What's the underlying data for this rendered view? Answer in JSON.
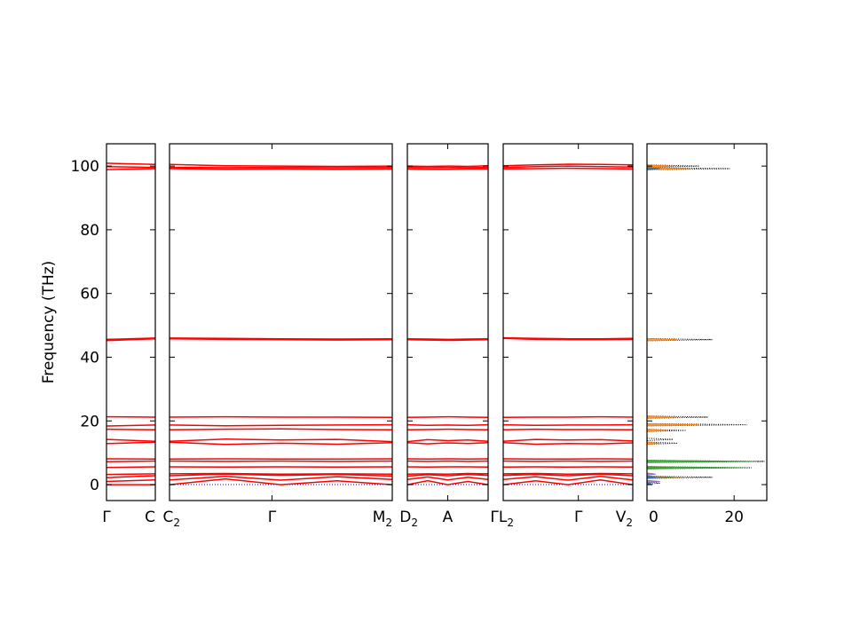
{
  "chart_data": {
    "type": "line",
    "ylabel": "Frequency (THz)",
    "ylim": [
      -5,
      107
    ],
    "yticks": [
      0,
      20,
      40,
      60,
      80,
      100
    ],
    "line_color": "#ff0000",
    "zero_line_color": "#0000ff",
    "panels": [
      {
        "id": "p1",
        "xticks": [
          {
            "label": "Γ",
            "sub": "",
            "pos": 0
          },
          {
            "label": "C",
            "sub": "",
            "pos": 1
          }
        ],
        "band_profiles": [
          {
            "name": "b0",
            "values": [
              0.0,
              0.0
            ]
          },
          {
            "name": "b1",
            "values": [
              1.0,
              1.5
            ]
          },
          {
            "name": "b2",
            "values": [
              2.2,
              2.8
            ]
          },
          {
            "name": "b3",
            "values": [
              3.2,
              3.4
            ]
          },
          {
            "name": "b4",
            "values": [
              5.4,
              5.6
            ]
          },
          {
            "name": "b5",
            "values": [
              7.2,
              7.4
            ]
          },
          {
            "name": "b6",
            "values": [
              8.1,
              8.0
            ]
          },
          {
            "name": "b7",
            "values": [
              12.9,
              13.3
            ]
          },
          {
            "name": "b8",
            "values": [
              14.2,
              13.6
            ]
          },
          {
            "name": "b9",
            "values": [
              17.4,
              17.2
            ]
          },
          {
            "name": "b10",
            "values": [
              18.4,
              18.7
            ]
          },
          {
            "name": "b11",
            "values": [
              21.3,
              21.2
            ]
          },
          {
            "name": "b12",
            "values": [
              45.2,
              45.8
            ]
          },
          {
            "name": "b13",
            "values": [
              45.6,
              46.0
            ]
          },
          {
            "name": "b14",
            "values": [
              98.9,
              99.2
            ]
          },
          {
            "name": "b15",
            "values": [
              99.8,
              99.6
            ]
          },
          {
            "name": "b16",
            "values": [
              100.9,
              100.5
            ]
          }
        ]
      },
      {
        "id": "p2",
        "xticks": [
          {
            "label": "C",
            "sub": "2",
            "pos": 0
          },
          {
            "label": "Γ",
            "sub": "",
            "pos": 0.46
          },
          {
            "label": "M",
            "sub": "2",
            "pos": 1
          }
        ],
        "band_profiles": [
          {
            "name": "b0",
            "values": [
              0.0,
              1.8,
              0.0,
              1.2,
              0.0
            ]
          },
          {
            "name": "b1",
            "values": [
              1.5,
              2.6,
              1.4,
              2.5,
              1.6
            ]
          },
          {
            "name": "b2",
            "values": [
              2.8,
              3.3,
              2.9,
              3.2,
              2.7
            ]
          },
          {
            "name": "b3",
            "values": [
              3.4,
              3.5,
              3.3,
              3.4,
              3.3
            ]
          },
          {
            "name": "b4",
            "values": [
              5.6,
              5.5,
              5.6,
              5.5,
              5.6
            ]
          },
          {
            "name": "b5",
            "values": [
              7.4,
              7.3,
              7.4,
              7.3,
              7.4
            ]
          },
          {
            "name": "b6",
            "values": [
              8.0,
              8.1,
              8.0,
              8.0,
              8.1
            ]
          },
          {
            "name": "b7",
            "values": [
              13.3,
              12.6,
              13.0,
              12.7,
              13.2
            ]
          },
          {
            "name": "b8",
            "values": [
              13.6,
              14.3,
              14.0,
              14.2,
              13.5
            ]
          },
          {
            "name": "b9",
            "values": [
              17.2,
              17.4,
              17.5,
              17.3,
              17.2
            ]
          },
          {
            "name": "b10",
            "values": [
              18.7,
              18.5,
              18.6,
              18.7,
              18.8
            ]
          },
          {
            "name": "b11",
            "values": [
              21.2,
              21.3,
              21.2,
              21.2,
              21.1
            ]
          },
          {
            "name": "b12",
            "values": [
              45.8,
              45.6,
              45.5,
              45.4,
              45.5
            ]
          },
          {
            "name": "b13",
            "values": [
              46.0,
              45.9,
              45.8,
              45.7,
              45.8
            ]
          },
          {
            "name": "b14",
            "values": [
              99.2,
              99.0,
              99.1,
              99.0,
              99.1
            ]
          },
          {
            "name": "b15",
            "values": [
              99.6,
              99.5,
              99.6,
              99.5,
              99.6
            ]
          },
          {
            "name": "b16",
            "values": [
              100.5,
              100.1,
              100.0,
              99.9,
              100.0
            ]
          }
        ]
      },
      {
        "id": "p3",
        "xticks": [
          {
            "label": "D",
            "sub": "2",
            "pos": 0
          },
          {
            "label": "A",
            "sub": "",
            "pos": 0.5
          }
        ],
        "band_profiles": [
          {
            "name": "b0",
            "values": [
              0.0,
              1.2,
              0.0,
              1.0,
              0.0
            ]
          },
          {
            "name": "b1",
            "values": [
              1.6,
              2.4,
              1.5,
              2.3,
              1.6
            ]
          },
          {
            "name": "b2",
            "values": [
              2.7,
              3.1,
              2.8,
              3.2,
              2.9
            ]
          },
          {
            "name": "b3",
            "values": [
              3.3,
              3.4,
              3.3,
              3.5,
              3.4
            ]
          },
          {
            "name": "b4",
            "values": [
              5.6,
              5.5,
              5.6,
              5.6,
              5.5
            ]
          },
          {
            "name": "b5",
            "values": [
              7.4,
              7.3,
              7.4,
              7.3,
              7.4
            ]
          },
          {
            "name": "b6",
            "values": [
              8.1,
              8.0,
              8.1,
              8.0,
              8.1
            ]
          },
          {
            "name": "b7",
            "values": [
              13.2,
              12.8,
              13.1,
              12.9,
              13.2
            ]
          },
          {
            "name": "b8",
            "values": [
              13.5,
              14.1,
              13.8,
              14.0,
              13.6
            ]
          },
          {
            "name": "b9",
            "values": [
              17.2,
              17.3,
              17.4,
              17.3,
              17.2
            ]
          },
          {
            "name": "b10",
            "values": [
              18.8,
              18.6,
              18.7,
              18.6,
              18.8
            ]
          },
          {
            "name": "b11",
            "values": [
              21.1,
              21.2,
              21.3,
              21.2,
              21.1
            ]
          },
          {
            "name": "b12",
            "values": [
              45.5,
              45.4,
              45.3,
              45.4,
              45.5
            ]
          },
          {
            "name": "b13",
            "values": [
              45.8,
              45.7,
              45.6,
              45.7,
              45.8
            ]
          },
          {
            "name": "b14",
            "values": [
              99.1,
              99.0,
              99.0,
              99.1,
              99.1
            ]
          },
          {
            "name": "b15",
            "values": [
              99.6,
              99.5,
              99.6,
              99.5,
              99.6
            ]
          },
          {
            "name": "b16",
            "values": [
              100.0,
              99.9,
              100.0,
              99.9,
              100.1
            ]
          }
        ]
      },
      {
        "id": "p4",
        "xticks": [
          {
            "label": "ΓL",
            "sub": "2",
            "pos": 0
          },
          {
            "label": "Γ",
            "sub": "",
            "pos": 0.58
          },
          {
            "label": "V",
            "sub": "2",
            "pos": 1
          }
        ],
        "band_profiles": [
          {
            "name": "b0",
            "values": [
              0.0,
              1.2,
              0.0,
              1.5,
              0.0
            ]
          },
          {
            "name": "b1",
            "values": [
              1.6,
              2.5,
              1.4,
              2.6,
              1.5
            ]
          },
          {
            "name": "b2",
            "values": [
              2.9,
              3.2,
              2.8,
              3.3,
              2.8
            ]
          },
          {
            "name": "b3",
            "values": [
              3.4,
              3.5,
              3.3,
              3.5,
              3.4
            ]
          },
          {
            "name": "b4",
            "values": [
              5.5,
              5.6,
              5.5,
              5.6,
              5.5
            ]
          },
          {
            "name": "b5",
            "values": [
              7.4,
              7.3,
              7.4,
              7.3,
              7.4
            ]
          },
          {
            "name": "b6",
            "values": [
              8.1,
              8.0,
              8.0,
              8.1,
              8.0
            ]
          },
          {
            "name": "b7",
            "values": [
              13.2,
              12.7,
              12.9,
              12.8,
              13.1
            ]
          },
          {
            "name": "b8",
            "values": [
              13.6,
              14.2,
              14.0,
              14.1,
              13.7
            ]
          },
          {
            "name": "b9",
            "values": [
              17.2,
              17.4,
              17.3,
              17.3,
              17.2
            ]
          },
          {
            "name": "b10",
            "values": [
              18.8,
              18.6,
              18.7,
              18.7,
              18.8
            ]
          },
          {
            "name": "b11",
            "values": [
              21.1,
              21.2,
              21.2,
              21.3,
              21.2
            ]
          },
          {
            "name": "b12",
            "values": [
              45.9,
              45.6,
              45.5,
              45.5,
              45.6
            ]
          },
          {
            "name": "b13",
            "values": [
              46.1,
              45.9,
              45.8,
              45.8,
              45.9
            ]
          },
          {
            "name": "b14",
            "values": [
              99.1,
              99.2,
              99.3,
              99.2,
              99.1
            ]
          },
          {
            "name": "b15",
            "values": [
              99.6,
              99.8,
              100.0,
              99.8,
              99.7
            ]
          },
          {
            "name": "b16",
            "values": [
              100.1,
              100.4,
              100.6,
              100.5,
              100.4
            ]
          }
        ]
      }
    ],
    "dos_panel": {
      "xlim": [
        0,
        27.5
      ],
      "xticks": [
        0,
        20
      ],
      "series": [
        {
          "color": "#000000",
          "style": "dotted",
          "peaks": [
            [
              0.5,
              3
            ],
            [
              2.3,
              15
            ],
            [
              5.3,
              24
            ],
            [
              7.3,
              27
            ],
            [
              13.0,
              7
            ],
            [
              14.2,
              6
            ],
            [
              17.0,
              9
            ],
            [
              18.8,
              23
            ],
            [
              21.2,
              14
            ],
            [
              45.5,
              15
            ],
            [
              99.2,
              19
            ],
            [
              100.0,
              12
            ]
          ]
        },
        {
          "color": "#ff7f0e",
          "style": "solid",
          "peaks": [
            [
              2.3,
              8
            ],
            [
              5.3,
              6
            ],
            [
              13.0,
              3
            ],
            [
              17.0,
              5
            ],
            [
              18.8,
              12
            ],
            [
              21.2,
              7
            ],
            [
              45.5,
              7
            ],
            [
              99.2,
              10
            ],
            [
              100.0,
              6
            ]
          ]
        },
        {
          "color": "#2ca02c",
          "style": "solid",
          "peaks": [
            [
              5.3,
              22
            ],
            [
              7.3,
              25
            ],
            [
              2.3,
              6
            ]
          ]
        },
        {
          "color": "#9467bd",
          "style": "solid",
          "peaks": [
            [
              1.0,
              3
            ],
            [
              2.3,
              4
            ],
            [
              3.3,
              2
            ]
          ]
        },
        {
          "color": "#1f77b4",
          "style": "solid",
          "peaks": [
            [
              0.3,
              1
            ],
            [
              2.3,
              2
            ],
            [
              99.2,
              3
            ]
          ]
        }
      ]
    }
  }
}
